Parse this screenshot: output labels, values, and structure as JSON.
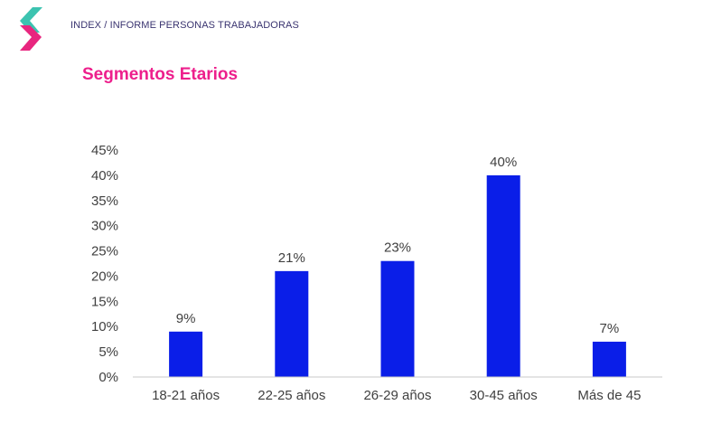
{
  "header": {
    "breadcrumb": "INDEX / INFORME PERSONAS TRABAJADORAS",
    "logo_colors": [
      "#3cc3b0",
      "#e8267f"
    ]
  },
  "section": {
    "title": "Segmentos Etarios",
    "title_color": "#ed1f8c"
  },
  "chart_data": {
    "type": "bar",
    "title": "",
    "xlabel": "",
    "ylabel": "",
    "categories": [
      "18-21 años",
      "22-25 años",
      "26-29 años",
      "30-45 años",
      "Más de 45"
    ],
    "values": [
      9,
      21,
      23,
      40,
      7
    ],
    "data_labels": [
      "9%",
      "21%",
      "23%",
      "40%",
      "7%"
    ],
    "ylim": [
      0,
      45
    ],
    "y_ticks": [
      "0%",
      "5%",
      "10%",
      "15%",
      "20%",
      "25%",
      "30%",
      "35%",
      "40%",
      "45%"
    ],
    "grid": false,
    "legend": "none",
    "bar_color": "#0a1ee8",
    "text_color": "#404040",
    "axis_color": "#c8c8c8"
  }
}
